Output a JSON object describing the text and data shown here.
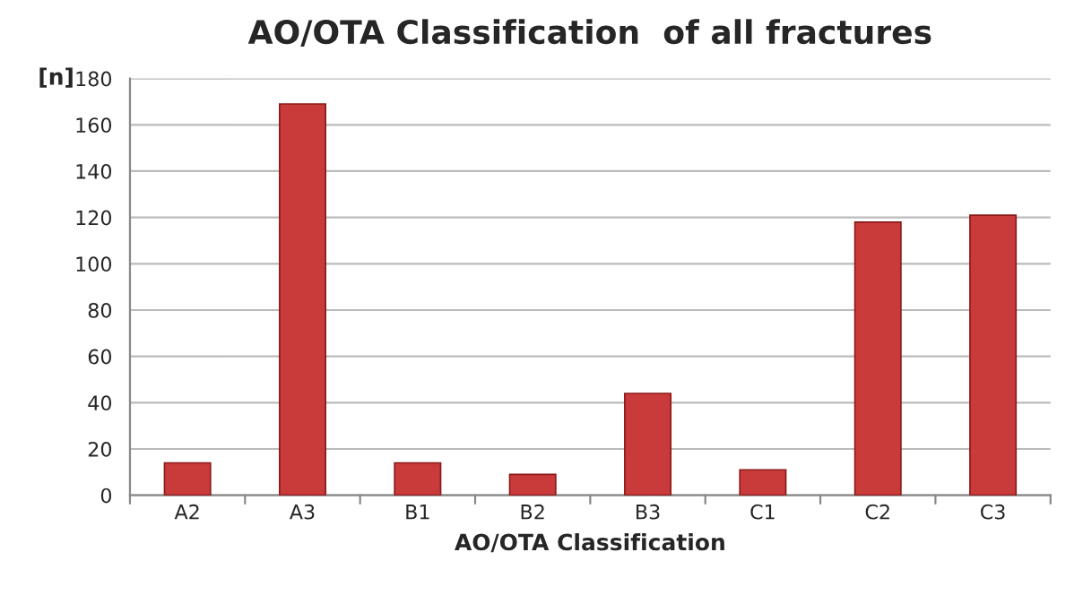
{
  "chart_data": {
    "type": "bar",
    "title": "AO/OTA Classification  of all fractures",
    "xlabel": "AO/OTA Classification",
    "ylabel": "[n]",
    "categories": [
      "A2",
      "A3",
      "B1",
      "B2",
      "B3",
      "C1",
      "C2",
      "C3"
    ],
    "values": [
      14,
      169,
      14,
      9,
      44,
      11,
      118,
      121
    ],
    "color": "#c93a3a",
    "ylim": [
      0,
      180
    ],
    "yticks": [
      0,
      20,
      40,
      60,
      80,
      100,
      120,
      140,
      160,
      180
    ],
    "grid": "y"
  }
}
